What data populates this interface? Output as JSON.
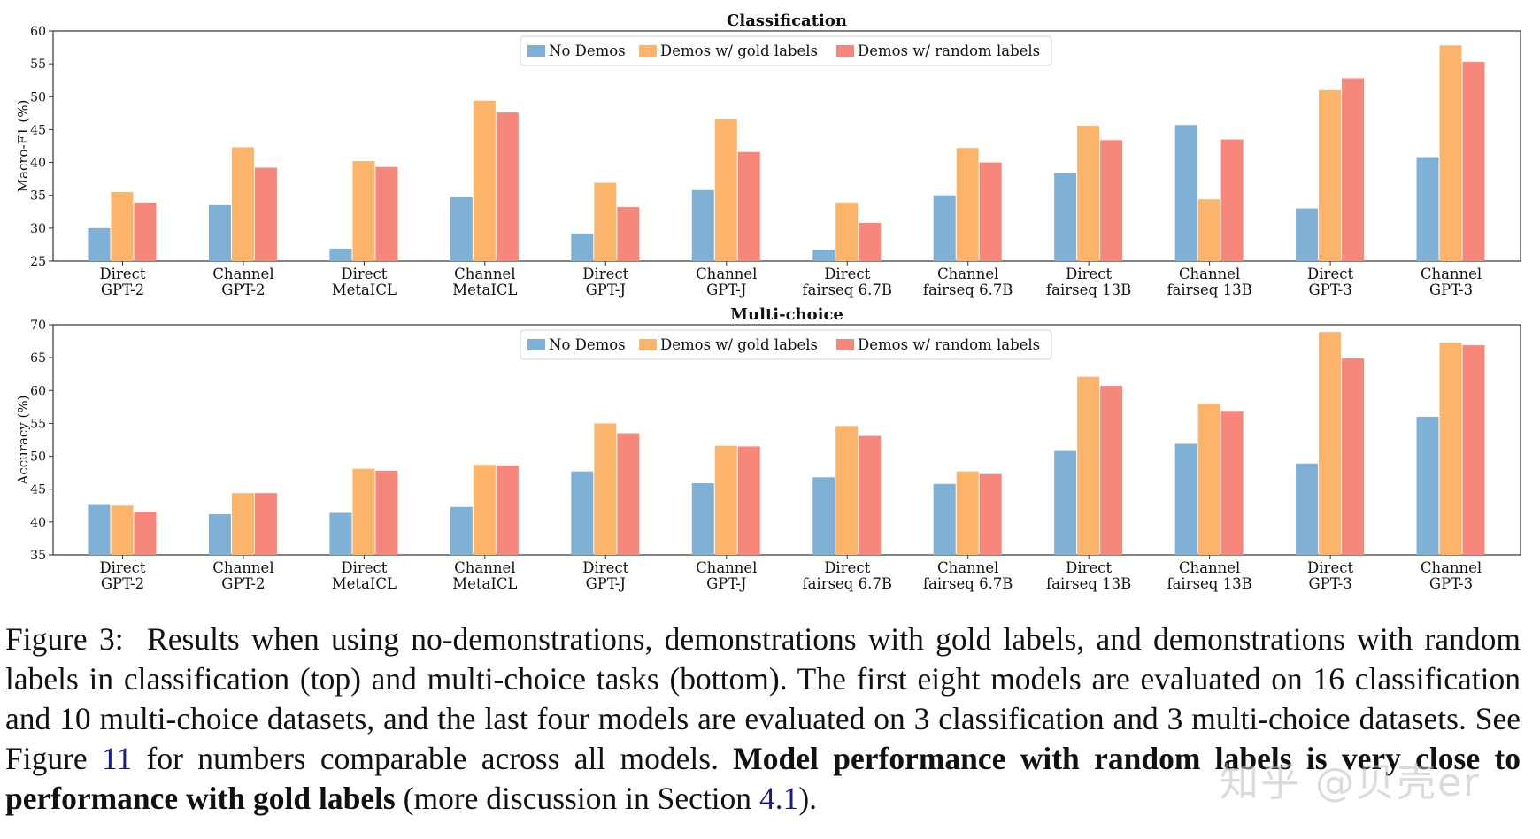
{
  "chart_data": [
    {
      "type": "bar",
      "title": "Classification",
      "ylabel": "Macro-F1 (%)",
      "xlabel": "",
      "ylim": [
        25,
        60
      ],
      "yticks": [
        25,
        30,
        35,
        40,
        45,
        50,
        55,
        60
      ],
      "grid": false,
      "legend_position": "top-center",
      "categories": [
        [
          "Direct",
          "GPT-2"
        ],
        [
          "Channel",
          "GPT-2"
        ],
        [
          "Direct",
          "MetaICL"
        ],
        [
          "Channel",
          "MetaICL"
        ],
        [
          "Direct",
          "GPT-J"
        ],
        [
          "Channel",
          "GPT-J"
        ],
        [
          "Direct",
          "fairseq 6.7B"
        ],
        [
          "Channel",
          "fairseq 6.7B"
        ],
        [
          "Direct",
          "fairseq 13B"
        ],
        [
          "Channel",
          "fairseq 13B"
        ],
        [
          "Direct",
          "GPT-3"
        ],
        [
          "Channel",
          "GPT-3"
        ]
      ],
      "series": [
        {
          "name": "No Demos",
          "color": "#7fb0d6",
          "values": [
            30.0,
            33.5,
            26.9,
            34.7,
            29.2,
            35.8,
            26.7,
            35.0,
            38.4,
            45.7,
            33.0,
            40.8
          ]
        },
        {
          "name": "Demos w/ gold labels",
          "color": "#fbb469",
          "values": [
            35.5,
            42.3,
            40.2,
            49.4,
            36.9,
            46.6,
            33.9,
            42.2,
            45.6,
            34.4,
            51.0,
            57.8
          ]
        },
        {
          "name": "Demos w/ random labels",
          "color": "#f7877a",
          "values": [
            33.9,
            39.2,
            39.3,
            47.6,
            33.2,
            41.6,
            30.8,
            40.0,
            43.4,
            43.5,
            52.8,
            55.3
          ]
        }
      ]
    },
    {
      "type": "bar",
      "title": "Multi-choice",
      "ylabel": "Accuracy (%)",
      "xlabel": "",
      "ylim": [
        35,
        70
      ],
      "yticks": [
        35,
        40,
        45,
        50,
        55,
        60,
        65,
        70
      ],
      "grid": false,
      "legend_position": "top-center",
      "categories": [
        [
          "Direct",
          "GPT-2"
        ],
        [
          "Channel",
          "GPT-2"
        ],
        [
          "Direct",
          "MetaICL"
        ],
        [
          "Channel",
          "MetaICL"
        ],
        [
          "Direct",
          "GPT-J"
        ],
        [
          "Channel",
          "GPT-J"
        ],
        [
          "Direct",
          "fairseq 6.7B"
        ],
        [
          "Channel",
          "fairseq 6.7B"
        ],
        [
          "Direct",
          "fairseq 13B"
        ],
        [
          "Channel",
          "fairseq 13B"
        ],
        [
          "Direct",
          "GPT-3"
        ],
        [
          "Channel",
          "GPT-3"
        ]
      ],
      "series": [
        {
          "name": "No Demos",
          "color": "#7fb0d6",
          "values": [
            42.6,
            41.2,
            41.4,
            42.3,
            47.7,
            45.9,
            46.8,
            45.8,
            50.8,
            51.9,
            48.9,
            56.0
          ]
        },
        {
          "name": "Demos w/ gold labels",
          "color": "#fbb469",
          "values": [
            42.5,
            44.4,
            48.1,
            48.7,
            55.0,
            51.6,
            54.6,
            47.7,
            62.1,
            58.0,
            68.9,
            67.3
          ]
        },
        {
          "name": "Demos w/ random labels",
          "color": "#f7877a",
          "values": [
            41.6,
            44.4,
            47.8,
            48.6,
            53.5,
            51.5,
            53.1,
            47.3,
            60.7,
            56.9,
            64.9,
            66.9
          ]
        }
      ]
    }
  ],
  "caption": {
    "label": "Figure 3:",
    "text_1": "Results when using no-demonstrations, demonstrations with gold labels, and demonstrations with random labels in classification (top) and multi-choice tasks (bottom). The first eight models are evaluated on 16 classification and 10 multi-choice datasets, and the last four models are evaluated on 3 classification and 3 multi-choice datasets. See Figure",
    "ref_figure": "11",
    "text_2": "for numbers comparable across all models.",
    "bold_text": "Model performance with random labels is very close to performance with gold labels",
    "text_3": "(more discussion in Section",
    "ref_section": "4.1",
    "text_4": ")."
  },
  "watermark": "知乎 @贝壳er"
}
